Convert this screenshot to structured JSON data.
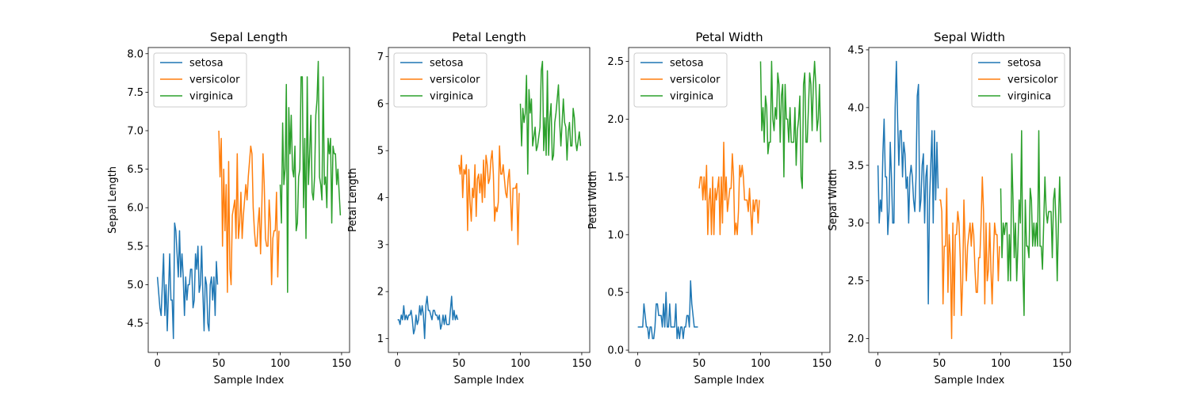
{
  "colors": {
    "setosa": "#1f77b4",
    "versicolor": "#ff7f0e",
    "virginica": "#2ca02c"
  },
  "chart_data": [
    {
      "type": "line",
      "title": "Sepal Length",
      "xlabel": "Sample Index",
      "ylabel": "Sepal Length",
      "xlim": [
        -7.5,
        156.5
      ],
      "ylim": [
        4.12,
        8.08
      ],
      "xticks": [
        0,
        50,
        100,
        150
      ],
      "yticks": [
        4.5,
        5.0,
        5.5,
        6.0,
        6.5,
        7.0,
        7.5,
        8.0
      ],
      "ytick_labels": [
        "4.5",
        "5.0",
        "5.5",
        "6.0",
        "6.5",
        "7.0",
        "7.5",
        "8.0"
      ],
      "legend": "upper left",
      "series": [
        {
          "name": "setosa",
          "x_start": 0,
          "values": [
            5.1,
            4.9,
            4.7,
            4.6,
            5.0,
            5.4,
            4.6,
            5.0,
            4.4,
            4.9,
            5.4,
            4.8,
            4.8,
            4.3,
            5.8,
            5.7,
            5.4,
            5.1,
            5.7,
            5.1,
            5.4,
            5.1,
            4.6,
            5.1,
            4.8,
            5.0,
            5.0,
            5.2,
            5.2,
            4.7,
            4.8,
            5.4,
            5.2,
            5.5,
            4.9,
            5.0,
            5.5,
            4.9,
            4.4,
            5.1,
            5.0,
            4.5,
            4.4,
            5.0,
            5.1,
            4.8,
            5.1,
            4.6,
            5.3,
            5.0
          ]
        },
        {
          "name": "versicolor",
          "x_start": 50,
          "values": [
            7.0,
            6.4,
            6.9,
            5.5,
            6.5,
            5.7,
            6.3,
            4.9,
            6.6,
            5.2,
            5.0,
            5.9,
            6.0,
            6.1,
            5.6,
            6.7,
            5.6,
            5.8,
            6.2,
            5.6,
            5.9,
            6.1,
            6.3,
            6.1,
            6.4,
            6.6,
            6.8,
            6.7,
            6.0,
            5.7,
            5.5,
            5.5,
            5.8,
            6.0,
            5.4,
            6.0,
            6.7,
            6.3,
            5.6,
            5.5,
            5.5,
            6.1,
            5.8,
            5.0,
            5.6,
            5.7,
            5.7,
            6.2,
            5.1,
            5.7
          ]
        },
        {
          "name": "virginica",
          "x_start": 100,
          "values": [
            6.3,
            5.8,
            7.1,
            6.3,
            6.5,
            7.6,
            4.9,
            7.3,
            6.7,
            7.2,
            6.5,
            6.4,
            6.8,
            5.7,
            5.8,
            6.4,
            6.5,
            7.7,
            7.7,
            6.0,
            6.9,
            5.6,
            7.7,
            6.3,
            6.7,
            7.2,
            6.2,
            6.1,
            6.4,
            7.2,
            7.4,
            7.9,
            6.4,
            6.3,
            6.1,
            7.7,
            6.3,
            6.4,
            6.0,
            6.9,
            6.7,
            6.9,
            5.8,
            6.8,
            6.7,
            6.7,
            6.3,
            6.5,
            6.2,
            5.9
          ]
        }
      ]
    },
    {
      "type": "line",
      "title": "Petal Length",
      "xlabel": "Sample Index",
      "ylabel": "Petal Length",
      "xlim": [
        -7.5,
        156.5
      ],
      "ylim": [
        0.705,
        7.195
      ],
      "xticks": [
        0,
        50,
        100,
        150
      ],
      "yticks": [
        1,
        2,
        3,
        4,
        5,
        6,
        7
      ],
      "ytick_labels": [
        "1",
        "2",
        "3",
        "4",
        "5",
        "6",
        "7"
      ],
      "legend": "upper left",
      "series": [
        {
          "name": "setosa",
          "x_start": 0,
          "values": [
            1.4,
            1.4,
            1.3,
            1.5,
            1.4,
            1.7,
            1.4,
            1.5,
            1.4,
            1.5,
            1.5,
            1.6,
            1.4,
            1.1,
            1.2,
            1.5,
            1.3,
            1.4,
            1.7,
            1.5,
            1.7,
            1.5,
            1.0,
            1.7,
            1.9,
            1.6,
            1.6,
            1.5,
            1.4,
            1.6,
            1.6,
            1.5,
            1.5,
            1.4,
            1.5,
            1.2,
            1.3,
            1.5,
            1.3,
            1.5,
            1.3,
            1.3,
            1.3,
            1.6,
            1.9,
            1.4,
            1.6,
            1.4,
            1.5,
            1.4
          ]
        },
        {
          "name": "versicolor",
          "x_start": 50,
          "values": [
            4.7,
            4.5,
            4.9,
            4.0,
            4.6,
            4.5,
            4.7,
            3.3,
            4.6,
            3.9,
            3.5,
            4.2,
            4.0,
            4.7,
            3.6,
            4.4,
            4.5,
            4.1,
            4.5,
            3.9,
            4.8,
            4.0,
            4.9,
            4.7,
            4.3,
            4.4,
            4.8,
            5.0,
            4.5,
            3.5,
            3.8,
            3.7,
            3.9,
            5.1,
            4.5,
            4.5,
            4.7,
            4.4,
            4.1,
            4.0,
            4.4,
            4.6,
            4.0,
            3.3,
            4.2,
            4.2,
            4.2,
            4.3,
            3.0,
            4.1
          ]
        },
        {
          "name": "virginica",
          "x_start": 100,
          "values": [
            6.0,
            5.1,
            5.9,
            5.6,
            5.8,
            6.6,
            4.5,
            6.3,
            5.8,
            6.1,
            5.1,
            5.3,
            5.5,
            5.0,
            5.1,
            5.3,
            5.5,
            6.7,
            6.9,
            5.0,
            5.7,
            4.9,
            6.7,
            4.9,
            5.7,
            6.0,
            4.8,
            4.9,
            5.6,
            5.8,
            6.1,
            6.4,
            5.6,
            5.1,
            5.6,
            6.1,
            5.6,
            5.5,
            4.8,
            5.4,
            5.6,
            5.1,
            5.1,
            5.9,
            5.7,
            5.2,
            5.0,
            5.2,
            5.4,
            5.1
          ]
        }
      ]
    },
    {
      "type": "line",
      "title": "Petal Width",
      "xlabel": "Sample Index",
      "ylabel": "Petal Width",
      "xlim": [
        -7.5,
        156.5
      ],
      "ylim": [
        -0.02,
        2.62
      ],
      "xticks": [
        0,
        50,
        100,
        150
      ],
      "yticks": [
        0.0,
        0.5,
        1.0,
        1.5,
        2.0,
        2.5
      ],
      "ytick_labels": [
        "0.0",
        "0.5",
        "1.0",
        "1.5",
        "2.0",
        "2.5"
      ],
      "legend": "upper left",
      "series": [
        {
          "name": "setosa",
          "x_start": 0,
          "values": [
            0.2,
            0.2,
            0.2,
            0.2,
            0.2,
            0.4,
            0.3,
            0.2,
            0.2,
            0.1,
            0.2,
            0.2,
            0.1,
            0.1,
            0.2,
            0.4,
            0.4,
            0.3,
            0.3,
            0.3,
            0.2,
            0.4,
            0.2,
            0.5,
            0.2,
            0.2,
            0.4,
            0.2,
            0.2,
            0.2,
            0.2,
            0.4,
            0.1,
            0.2,
            0.1,
            0.2,
            0.2,
            0.1,
            0.2,
            0.2,
            0.3,
            0.3,
            0.2,
            0.6,
            0.4,
            0.3,
            0.2,
            0.2,
            0.2,
            0.2
          ]
        },
        {
          "name": "versicolor",
          "x_start": 50,
          "values": [
            1.4,
            1.5,
            1.5,
            1.3,
            1.5,
            1.3,
            1.6,
            1.0,
            1.3,
            1.4,
            1.0,
            1.5,
            1.0,
            1.4,
            1.3,
            1.4,
            1.5,
            1.0,
            1.5,
            1.1,
            1.8,
            1.3,
            1.5,
            1.2,
            1.3,
            1.4,
            1.4,
            1.7,
            1.5,
            1.0,
            1.1,
            1.0,
            1.2,
            1.6,
            1.5,
            1.6,
            1.5,
            1.3,
            1.3,
            1.3,
            1.2,
            1.4,
            1.2,
            1.0,
            1.3,
            1.2,
            1.3,
            1.3,
            1.1,
            1.3
          ]
        },
        {
          "name": "virginica",
          "x_start": 100,
          "values": [
            2.5,
            1.9,
            2.1,
            1.8,
            2.2,
            2.1,
            1.7,
            1.8,
            1.8,
            2.5,
            2.0,
            1.9,
            2.1,
            2.0,
            2.4,
            2.3,
            1.8,
            2.2,
            2.3,
            1.5,
            2.3,
            2.0,
            2.0,
            1.8,
            2.1,
            1.8,
            1.8,
            1.8,
            2.1,
            1.6,
            1.9,
            2.0,
            2.2,
            1.5,
            1.4,
            2.3,
            2.4,
            1.8,
            1.8,
            2.1,
            2.4,
            2.3,
            1.9,
            2.3,
            2.5,
            2.3,
            1.9,
            2.0,
            2.3,
            1.8
          ]
        }
      ]
    },
    {
      "type": "line",
      "title": "Sepal Width",
      "xlabel": "Sample Index",
      "ylabel": "Sepal Width",
      "xlim": [
        -7.5,
        156.5
      ],
      "ylim": [
        1.88,
        4.52
      ],
      "xticks": [
        0,
        50,
        100,
        150
      ],
      "yticks": [
        2.0,
        2.5,
        3.0,
        3.5,
        4.0,
        4.5
      ],
      "ytick_labels": [
        "2.0",
        "2.5",
        "3.0",
        "3.5",
        "4.0",
        "4.5"
      ],
      "legend": "upper right",
      "series": [
        {
          "name": "setosa",
          "x_start": 0,
          "values": [
            3.5,
            3.0,
            3.2,
            3.1,
            3.6,
            3.9,
            3.4,
            3.4,
            2.9,
            3.1,
            3.7,
            3.4,
            3.0,
            3.0,
            4.0,
            4.4,
            3.9,
            3.5,
            3.8,
            3.8,
            3.4,
            3.7,
            3.6,
            3.3,
            3.4,
            3.0,
            3.4,
            3.5,
            3.4,
            3.2,
            3.1,
            3.4,
            4.1,
            4.2,
            3.1,
            3.2,
            3.5,
            3.6,
            3.0,
            3.4,
            3.5,
            2.3,
            3.2,
            3.5,
            3.8,
            3.0,
            3.8,
            3.2,
            3.7,
            3.3
          ]
        },
        {
          "name": "versicolor",
          "x_start": 50,
          "values": [
            3.2,
            3.2,
            3.1,
            2.3,
            2.8,
            2.8,
            3.3,
            2.4,
            2.9,
            2.7,
            2.0,
            3.0,
            2.2,
            2.9,
            2.9,
            3.1,
            3.0,
            2.7,
            2.2,
            2.5,
            3.2,
            2.8,
            2.5,
            2.8,
            2.9,
            3.0,
            2.8,
            3.0,
            2.9,
            2.6,
            2.4,
            2.4,
            2.7,
            2.7,
            3.0,
            3.4,
            3.1,
            2.3,
            3.0,
            2.5,
            2.6,
            3.0,
            2.6,
            2.3,
            2.7,
            3.0,
            2.9,
            2.9,
            2.5,
            2.8
          ]
        },
        {
          "name": "virginica",
          "x_start": 100,
          "values": [
            3.3,
            2.7,
            3.0,
            2.9,
            3.0,
            3.0,
            2.5,
            2.9,
            2.5,
            3.6,
            3.2,
            2.7,
            3.0,
            2.5,
            2.8,
            3.2,
            3.0,
            3.8,
            2.6,
            2.2,
            3.2,
            2.8,
            2.8,
            2.7,
            3.3,
            3.2,
            2.8,
            3.0,
            2.8,
            3.0,
            2.8,
            3.8,
            2.8,
            2.8,
            2.6,
            3.0,
            3.4,
            3.1,
            3.0,
            3.1,
            3.1,
            3.1,
            2.7,
            3.2,
            3.3,
            3.0,
            2.5,
            3.0,
            3.4,
            3.0
          ]
        }
      ]
    }
  ]
}
